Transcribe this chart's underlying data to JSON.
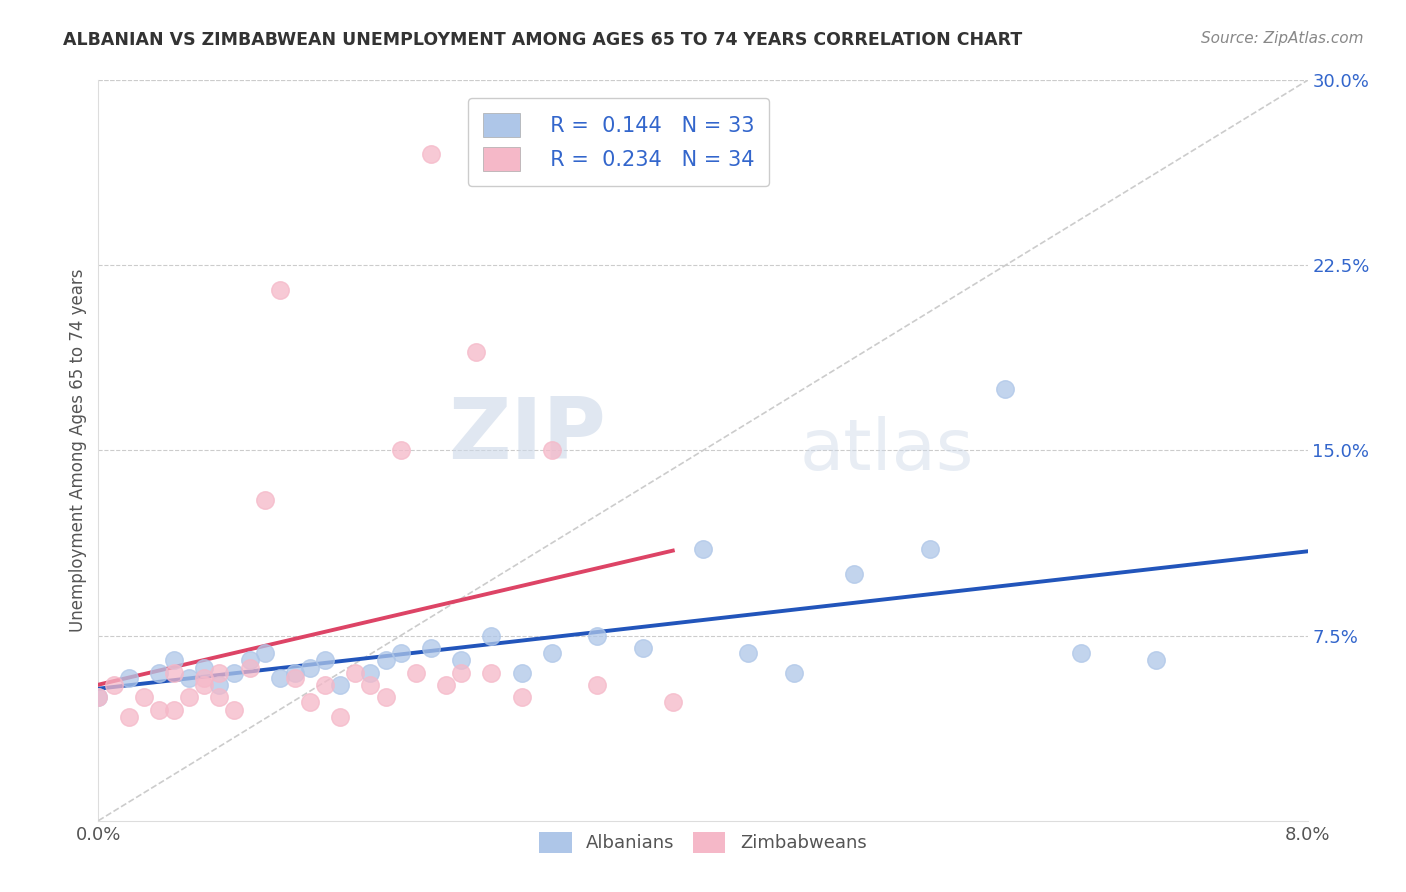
{
  "title": "ALBANIAN VS ZIMBABWEAN UNEMPLOYMENT AMONG AGES 65 TO 74 YEARS CORRELATION CHART",
  "source": "Source: ZipAtlas.com",
  "ylabel": "Unemployment Among Ages 65 to 74 years",
  "xlim": [
    0.0,
    0.08
  ],
  "ylim": [
    0.0,
    0.3
  ],
  "xticks": [
    0.0,
    0.02,
    0.04,
    0.06,
    0.08
  ],
  "xticklabels": [
    "0.0%",
    "",
    "",
    "",
    "8.0%"
  ],
  "yticks_right": [
    0.0,
    0.075,
    0.15,
    0.225,
    0.3
  ],
  "yticklabels_right": [
    "",
    "7.5%",
    "15.0%",
    "22.5%",
    "30.0%"
  ],
  "albanian_R": 0.144,
  "albanian_N": 33,
  "zimbabwean_R": 0.234,
  "zimbabwean_N": 34,
  "albanian_color": "#aec6e8",
  "zimbabwean_color": "#f5b8c8",
  "albanian_line_color": "#2255bb",
  "zimbabwean_line_color": "#dd4466",
  "ref_line_color": "#cccccc",
  "albanian_x": [
    0.0,
    0.002,
    0.004,
    0.005,
    0.006,
    0.007,
    0.008,
    0.009,
    0.01,
    0.011,
    0.012,
    0.013,
    0.014,
    0.015,
    0.016,
    0.018,
    0.019,
    0.02,
    0.022,
    0.024,
    0.026,
    0.028,
    0.03,
    0.033,
    0.036,
    0.04,
    0.043,
    0.046,
    0.05,
    0.055,
    0.06,
    0.065,
    0.07
  ],
  "albanian_y": [
    0.05,
    0.058,
    0.06,
    0.065,
    0.058,
    0.062,
    0.055,
    0.06,
    0.065,
    0.068,
    0.058,
    0.06,
    0.062,
    0.065,
    0.055,
    0.06,
    0.065,
    0.068,
    0.07,
    0.065,
    0.075,
    0.06,
    0.068,
    0.075,
    0.07,
    0.11,
    0.068,
    0.06,
    0.1,
    0.11,
    0.175,
    0.068,
    0.065
  ],
  "zimbabwean_x": [
    0.0,
    0.001,
    0.002,
    0.003,
    0.004,
    0.005,
    0.005,
    0.006,
    0.007,
    0.007,
    0.008,
    0.008,
    0.009,
    0.01,
    0.011,
    0.012,
    0.013,
    0.014,
    0.015,
    0.016,
    0.017,
    0.018,
    0.019,
    0.02,
    0.021,
    0.022,
    0.023,
    0.024,
    0.025,
    0.026,
    0.028,
    0.03,
    0.033,
    0.038
  ],
  "zimbabwean_y": [
    0.05,
    0.055,
    0.042,
    0.05,
    0.045,
    0.06,
    0.045,
    0.05,
    0.055,
    0.058,
    0.05,
    0.06,
    0.045,
    0.062,
    0.13,
    0.215,
    0.058,
    0.048,
    0.055,
    0.042,
    0.06,
    0.055,
    0.05,
    0.15,
    0.06,
    0.27,
    0.055,
    0.06,
    0.19,
    0.06,
    0.05,
    0.15,
    0.055,
    0.048
  ],
  "background_color": "#ffffff",
  "watermark_zip": "ZIP",
  "watermark_atlas": "atlas",
  "legend_R1": "R = ",
  "legend_V1": "0.144",
  "legend_N1": "  N = ",
  "legend_NV1": "33",
  "legend_R2": "R = ",
  "legend_V2": "0.234",
  "legend_N2": "  N = ",
  "legend_NV2": "34"
}
